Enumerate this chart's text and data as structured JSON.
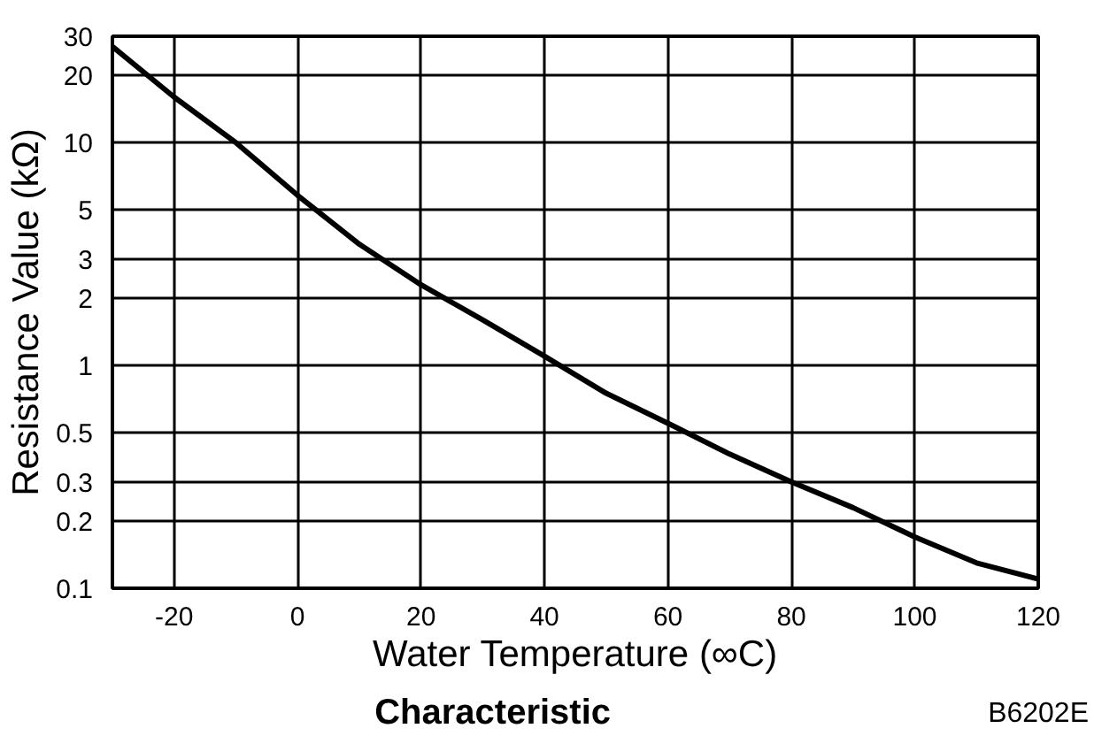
{
  "chart_data": {
    "type": "line",
    "title": "Characteristic",
    "xlabel": "Water Temperature (∞C)",
    "ylabel": "Resistance Value (kΩ)",
    "x": [
      -30,
      -20,
      -10,
      0,
      10,
      20,
      30,
      40,
      50,
      60,
      70,
      80,
      90,
      100,
      110,
      120
    ],
    "series": [
      {
        "color": "#000000",
        "values": [
          27,
          16,
          10,
          5.8,
          3.5,
          2.3,
          1.6,
          1.1,
          0.75,
          0.55,
          0.4,
          0.3,
          0.23,
          0.17,
          0.13,
          0.11
        ]
      }
    ],
    "xlim": [
      -30,
      120
    ],
    "xticks": [
      -20,
      0,
      20,
      40,
      60,
      80,
      100,
      120
    ],
    "ylim": [
      0.1,
      30
    ],
    "yticks": [
      0.1,
      0.2,
      0.3,
      0.5,
      1,
      2,
      3,
      5,
      10,
      20,
      30
    ],
    "log": "y",
    "grid": true,
    "marker": "none",
    "line_style": "solid",
    "annotations": [
      "B6202E"
    ]
  }
}
